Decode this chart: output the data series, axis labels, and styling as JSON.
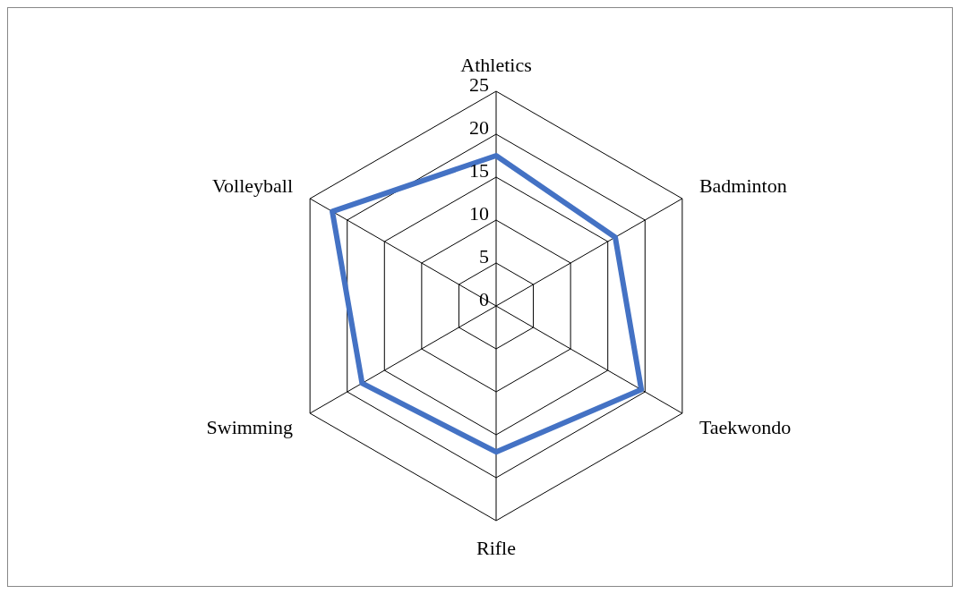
{
  "chart_data": {
    "type": "radar",
    "categories": [
      "Athletics",
      "Badminton",
      "Taekwondo",
      "Rifle",
      "Swimming",
      "Volleyball"
    ],
    "series": [
      {
        "color": "#4472c4",
        "values": [
          17.5,
          16,
          19.5,
          17,
          18,
          22
        ]
      }
    ],
    "ylim": [
      0,
      25
    ],
    "yticks": [
      0,
      5,
      10,
      15,
      20,
      25
    ],
    "marker": "none",
    "legend": false
  }
}
